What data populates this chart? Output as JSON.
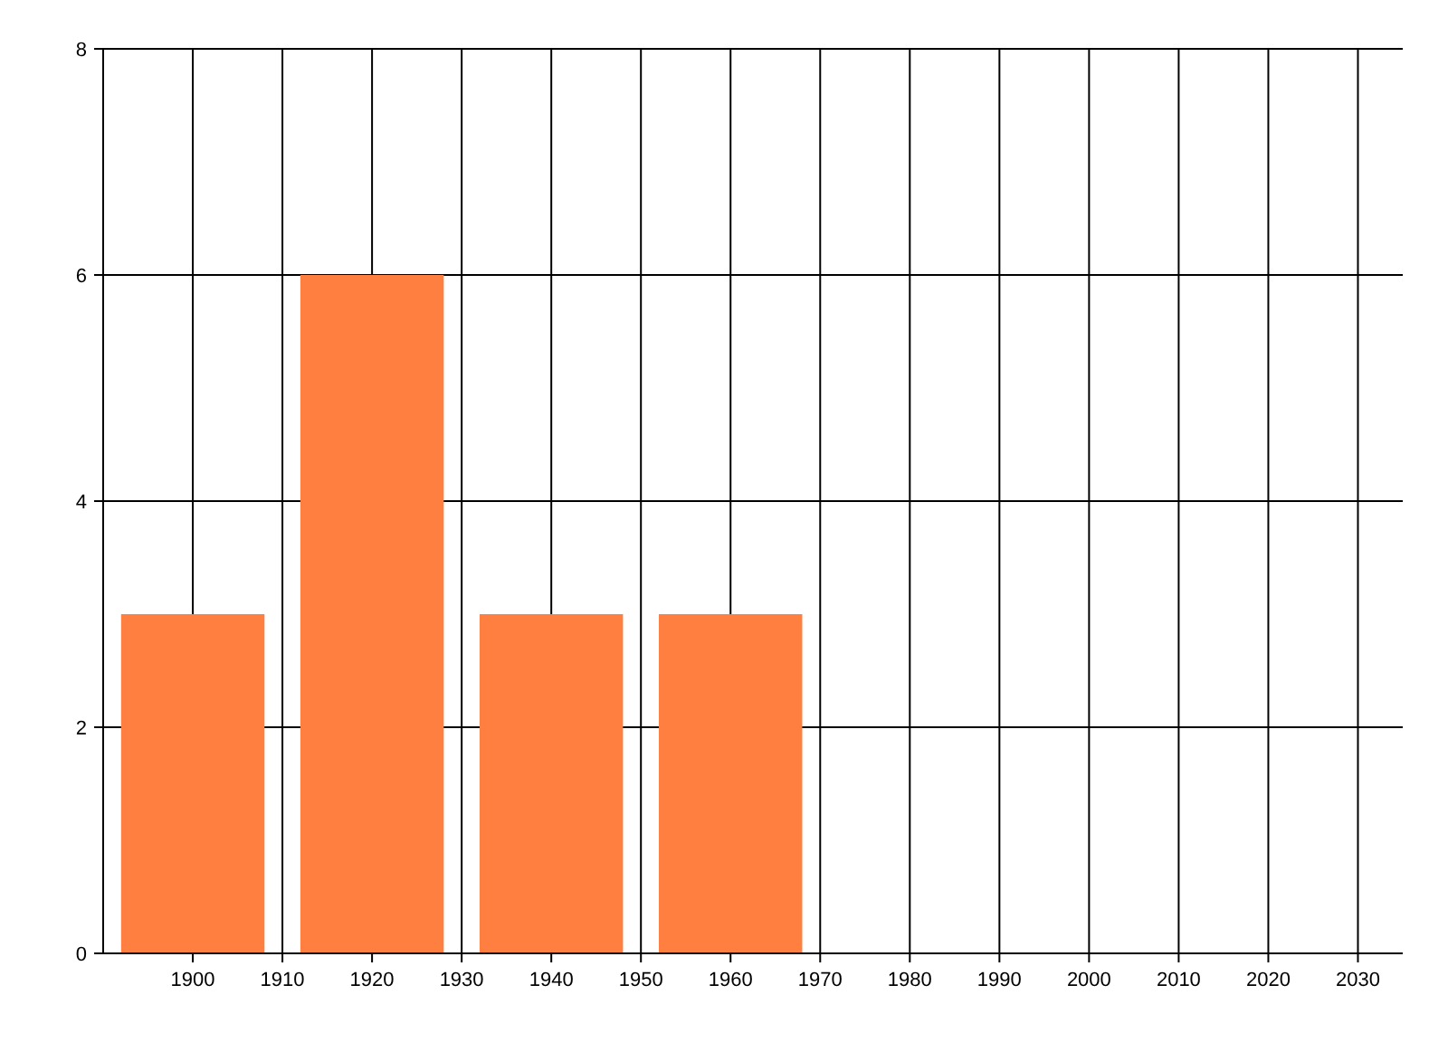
{
  "chart_data": {
    "type": "bar",
    "x": [
      1900,
      1920,
      1940,
      1960
    ],
    "values": [
      3,
      6,
      3,
      3
    ],
    "color": "#ff7f40",
    "xlim": [
      1890,
      2035
    ],
    "xticks": [
      1900,
      1910,
      1920,
      1930,
      1940,
      1950,
      1960,
      1970,
      1980,
      1990,
      2000,
      2010,
      2020,
      2030
    ],
    "ylim": [
      0,
      8
    ],
    "yticks": [
      0,
      2,
      4,
      6,
      8
    ],
    "grid": true
  }
}
